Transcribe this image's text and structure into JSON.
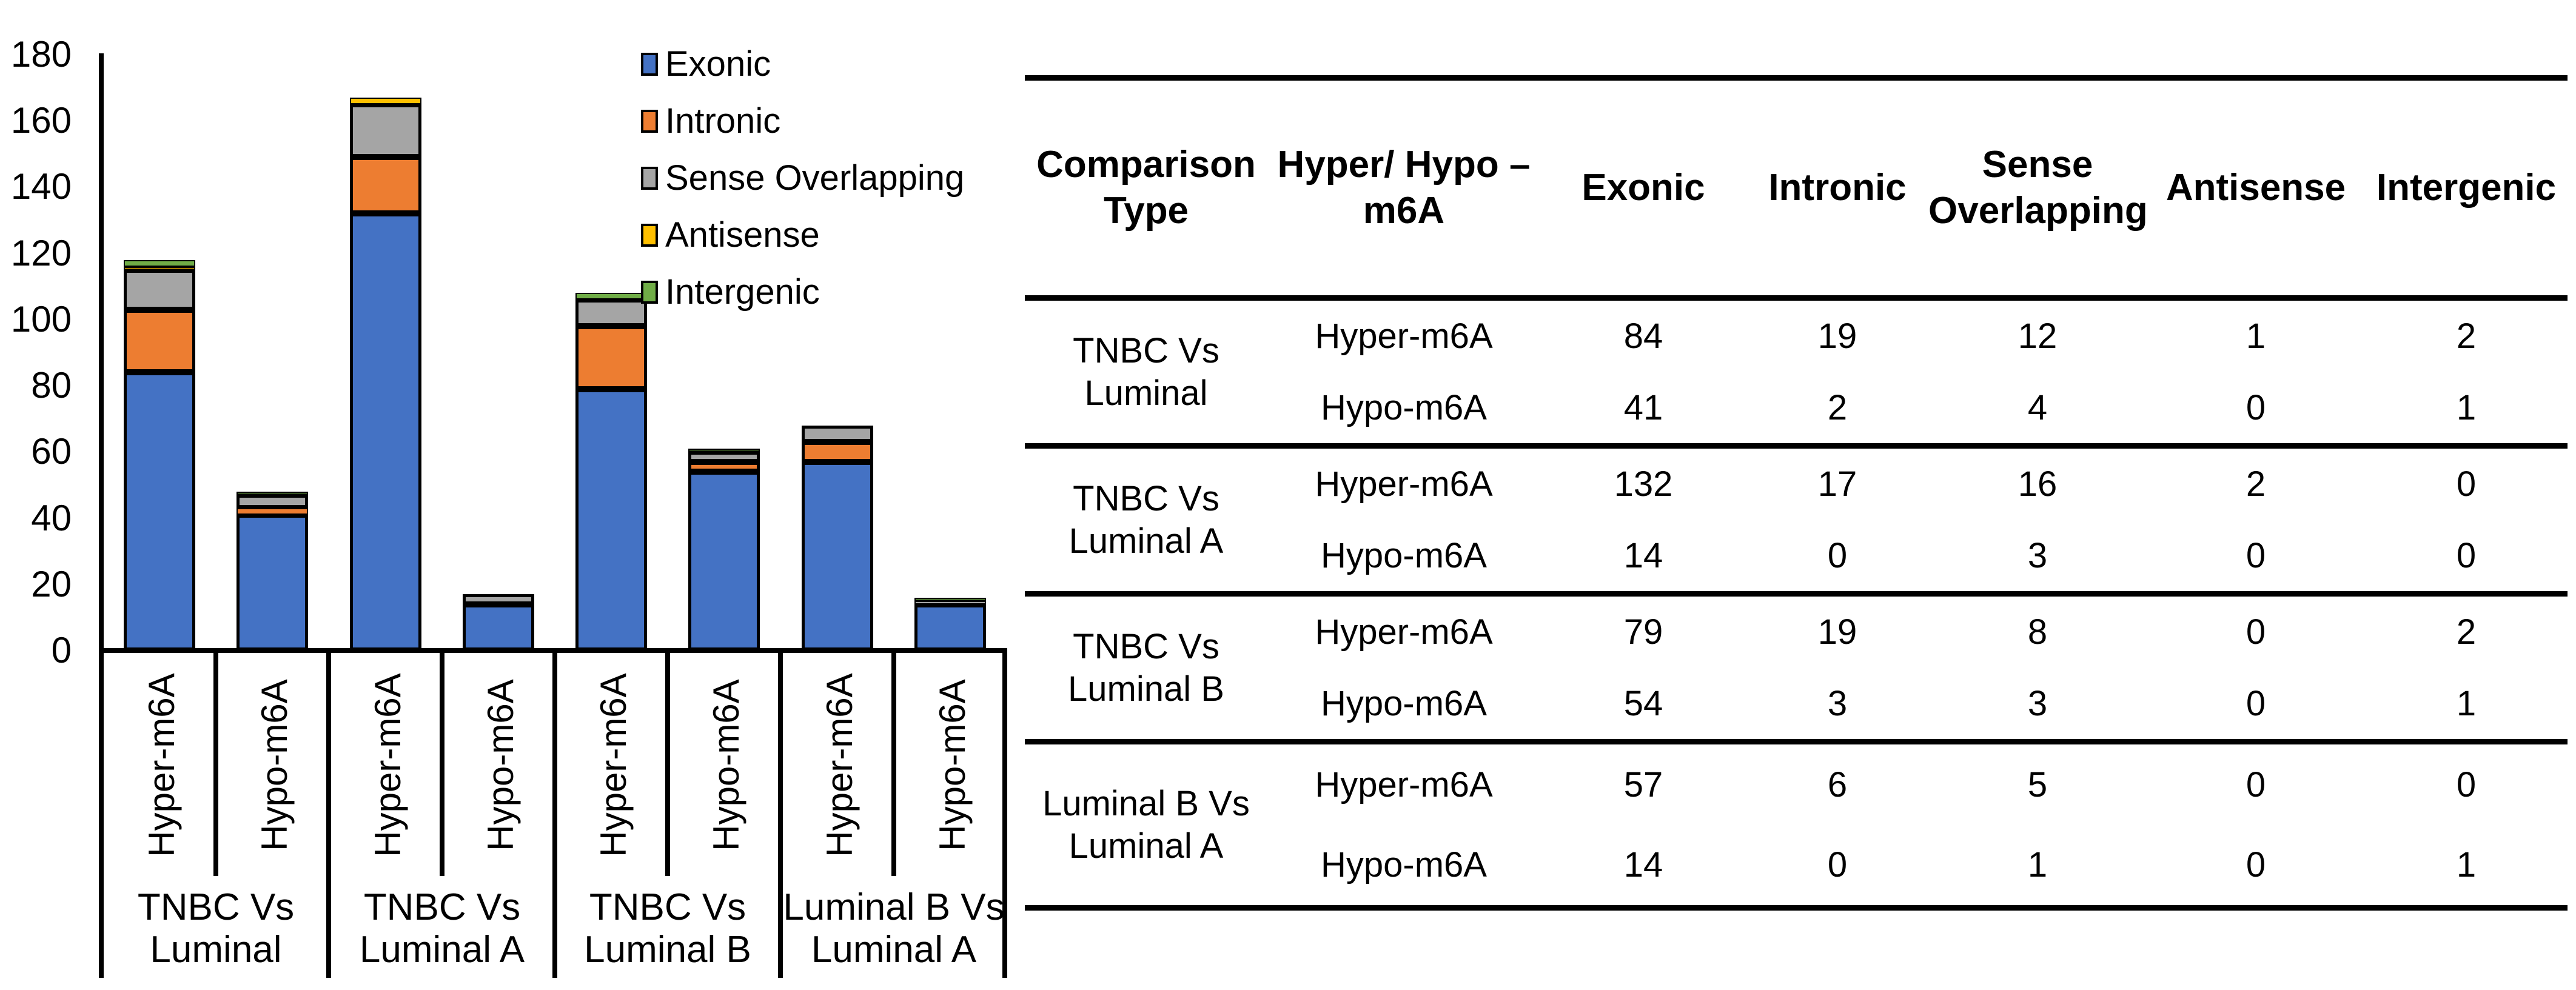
{
  "figure": {
    "background": "#ffffff",
    "text_color": "#000000"
  },
  "chart_data": {
    "type": "bar",
    "stacked": true,
    "title": "",
    "xlabel": "",
    "ylabel": "",
    "ylim": [
      0,
      180
    ],
    "ytick_interval": 20,
    "yticks": [
      0,
      20,
      40,
      60,
      80,
      100,
      120,
      140,
      160,
      180
    ],
    "grid": false,
    "legend_position": "top-inside-right",
    "bar_outline_color": "#000000",
    "bars_per_group": 2,
    "bar_labels": [
      "Hyper-m6A",
      "Hypo-m6A",
      "Hyper-m6A",
      "Hypo-m6A",
      "Hyper-m6A",
      "Hypo-m6A",
      "Hyper-m6A",
      "Hypo-m6A"
    ],
    "group_labels": [
      "TNBC Vs Luminal",
      "TNBC Vs Luminal A",
      "TNBC Vs Luminal B",
      "Luminal B Vs Luminal A"
    ],
    "group_label_lines": [
      [
        "TNBC Vs",
        "Luminal"
      ],
      [
        "TNBC Vs",
        "Luminal A"
      ],
      [
        "TNBC Vs",
        "Luminal B"
      ],
      [
        "Luminal B Vs",
        "Luminal A"
      ]
    ],
    "series": [
      {
        "name": "Exonic",
        "color": "#4472C4",
        "values": [
          84,
          41,
          132,
          14,
          79,
          54,
          57,
          14
        ]
      },
      {
        "name": "Intronic",
        "color": "#ED7D31",
        "values": [
          19,
          2,
          17,
          0,
          19,
          3,
          6,
          0
        ]
      },
      {
        "name": "Sense Overlapping",
        "color": "#A5A5A5",
        "values": [
          12,
          4,
          16,
          3,
          8,
          3,
          5,
          1
        ]
      },
      {
        "name": "Antisense",
        "color": "#FFC000",
        "values": [
          1,
          0,
          2,
          0,
          0,
          0,
          0,
          0
        ]
      },
      {
        "name": "Intergenic",
        "color": "#70AD47",
        "values": [
          2,
          1,
          0,
          0,
          2,
          1,
          0,
          1
        ]
      }
    ]
  },
  "table": {
    "headers": [
      {
        "label": "Comparison Type",
        "lines": [
          "Comparison",
          "Type"
        ]
      },
      {
        "label": "Hyper/ Hypo – m6A",
        "lines": [
          "Hyper/ Hypo –",
          "m6A"
        ]
      },
      {
        "label": "Exonic",
        "lines": [
          "Exonic"
        ]
      },
      {
        "label": "Intronic",
        "lines": [
          "Intronic"
        ]
      },
      {
        "label": "Sense Overlapping",
        "lines": [
          "Sense",
          "Overlapping"
        ]
      },
      {
        "label": "Antisense",
        "lines": [
          "Antisense"
        ]
      },
      {
        "label": "Intergenic",
        "lines": [
          "Intergenic"
        ]
      }
    ],
    "groups": [
      {
        "comparison": "TNBC Vs Luminal",
        "comparison_lines": [
          "TNBC Vs",
          "Luminal"
        ],
        "rows": [
          {
            "label": "Hyper-m6A",
            "values": [
              84,
              19,
              12,
              1,
              2
            ]
          },
          {
            "label": "Hypo-m6A",
            "values": [
              41,
              2,
              4,
              0,
              1
            ]
          }
        ]
      },
      {
        "comparison": "TNBC Vs Luminal A",
        "comparison_lines": [
          "TNBC Vs",
          "Luminal A"
        ],
        "rows": [
          {
            "label": "Hyper-m6A",
            "values": [
              132,
              17,
              16,
              2,
              0
            ]
          },
          {
            "label": "Hypo-m6A",
            "values": [
              14,
              0,
              3,
              0,
              0
            ]
          }
        ]
      },
      {
        "comparison": "TNBC Vs Luminal B",
        "comparison_lines": [
          "TNBC Vs",
          "Luminal B"
        ],
        "rows": [
          {
            "label": "Hyper-m6A",
            "values": [
              79,
              19,
              8,
              0,
              2
            ]
          },
          {
            "label": "Hypo-m6A",
            "values": [
              54,
              3,
              3,
              0,
              1
            ]
          }
        ]
      },
      {
        "comparison": "Luminal B Vs Luminal A",
        "comparison_lines": [
          "Luminal B Vs",
          "Luminal A"
        ],
        "rows": [
          {
            "label": "Hyper-m6A",
            "values": [
              57,
              6,
              5,
              0,
              0
            ]
          },
          {
            "label": "Hypo-m6A",
            "values": [
              14,
              0,
              1,
              0,
              1
            ]
          }
        ]
      }
    ]
  }
}
